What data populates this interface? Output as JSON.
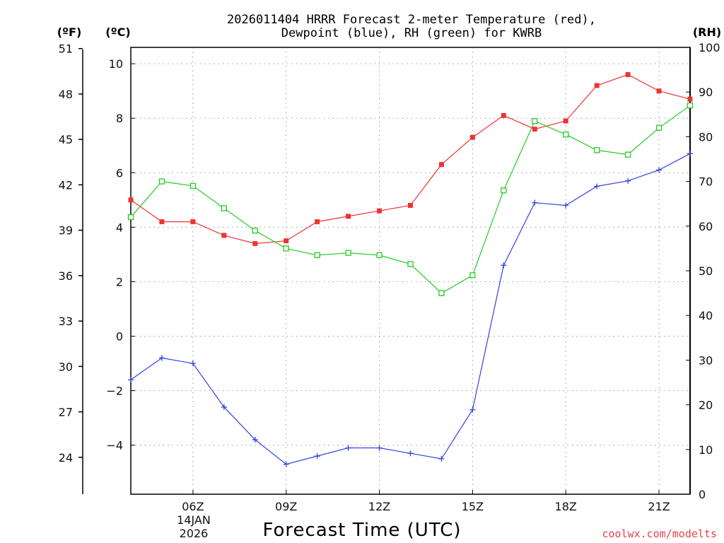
{
  "chart_data": {
    "type": "line",
    "title_line1": "2026011404 HRRR Forecast 2-meter Temperature (red),",
    "title_line2": "Dewpoint (blue), RH (green) for KWRB",
    "xlabel": "Forecast Time (UTC)",
    "credit": "coolwx.com/modelts",
    "units": {
      "left_outer": "(ºF)",
      "left_inner": "(ºC)",
      "right": "(RH)"
    },
    "x_hours": [
      4,
      5,
      6,
      7,
      8,
      9,
      10,
      11,
      12,
      13,
      14,
      15,
      16,
      17,
      18,
      19,
      20,
      21,
      22
    ],
    "xlim": [
      4,
      22
    ],
    "x_ticks": [
      {
        "hour": 6,
        "label": "06Z"
      },
      {
        "hour": 9,
        "label": "09Z"
      },
      {
        "hour": 12,
        "label": "12Z"
      },
      {
        "hour": 15,
        "label": "15Z"
      },
      {
        "hour": 18,
        "label": "18Z"
      },
      {
        "hour": 21,
        "label": "21Z"
      }
    ],
    "date_label_line1": "14JAN",
    "date_label_line2": "2026",
    "celsius_axis": {
      "ylim": [
        -5.8,
        10.6
      ],
      "ticks": [
        10,
        8,
        6,
        4,
        2,
        0,
        -2,
        -4
      ]
    },
    "fahrenheit_axis": {
      "ticks": [
        51,
        48,
        45,
        42,
        39,
        36,
        33,
        30,
        27,
        24
      ]
    },
    "rh_axis": {
      "ylim": [
        0,
        100
      ],
      "ticks": [
        100,
        90,
        80,
        70,
        60,
        50,
        40,
        30,
        20,
        10,
        0
      ]
    },
    "series": [
      {
        "name": "Temperature",
        "unit": "C",
        "color": "#ee3333",
        "marker": "filled-square",
        "values": [
          5.0,
          4.2,
          4.2,
          3.7,
          3.4,
          3.5,
          4.2,
          4.4,
          4.6,
          4.8,
          6.3,
          7.3,
          8.1,
          7.6,
          7.9,
          9.2,
          9.6,
          9.0,
          8.7
        ]
      },
      {
        "name": "Dewpoint",
        "unit": "C",
        "color": "#3344dd",
        "marker": "plus",
        "values": [
          -1.6,
          -0.8,
          -1.0,
          -2.6,
          -3.8,
          -4.7,
          -4.4,
          -4.1,
          -4.1,
          -4.3,
          -4.5,
          -2.7,
          2.6,
          4.9,
          4.8,
          5.5,
          5.7,
          6.1,
          6.7
        ]
      },
      {
        "name": "RH",
        "unit": "%",
        "color": "#22cc22",
        "marker": "open-square",
        "values": [
          62,
          70,
          69,
          64,
          59,
          55,
          53.5,
          54,
          53.5,
          51.5,
          45,
          49,
          68,
          83.5,
          80.5,
          77,
          76,
          82,
          87
        ]
      }
    ]
  }
}
